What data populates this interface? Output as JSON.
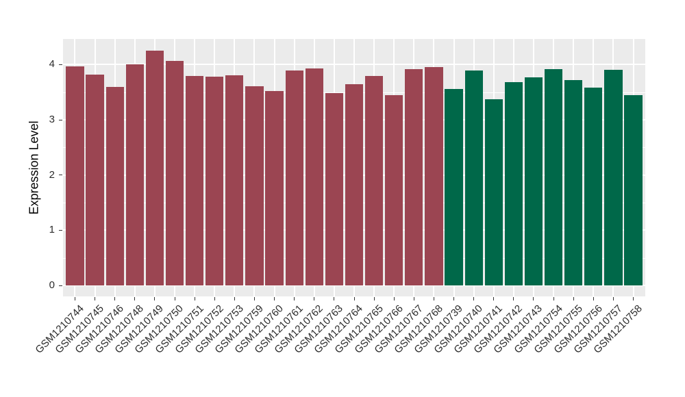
{
  "chart_data": {
    "type": "bar",
    "title": "",
    "xlabel": "",
    "ylabel": "Expression Level",
    "ylim": [
      0,
      4.46
    ],
    "yticks": [
      0,
      1,
      2,
      3,
      4
    ],
    "minor_gridlines": [
      0.5,
      1.5,
      2.5,
      3.5
    ],
    "grid": "on",
    "legend_position": "none",
    "panel_bg": "#EBEBEB",
    "outer_bg": "#FFFFFF",
    "grid_color": "#FFFFFF",
    "tick_color": "#333333",
    "axis_text_color": "#2B2B2B",
    "bar_colors": {
      "group1": "#9B4552",
      "group2": "#006849"
    },
    "bars": [
      {
        "label": "GSM1210744",
        "value": 3.97,
        "group": "group1"
      },
      {
        "label": "GSM1210745",
        "value": 3.82,
        "group": "group1"
      },
      {
        "label": "GSM1210746",
        "value": 3.59,
        "group": "group1"
      },
      {
        "label": "GSM1210748",
        "value": 4.0,
        "group": "group1"
      },
      {
        "label": "GSM1210749",
        "value": 4.25,
        "group": "group1"
      },
      {
        "label": "GSM1210750",
        "value": 4.07,
        "group": "group1"
      },
      {
        "label": "GSM1210751",
        "value": 3.8,
        "group": "group1"
      },
      {
        "label": "GSM1210752",
        "value": 3.78,
        "group": "group1"
      },
      {
        "label": "GSM1210753",
        "value": 3.81,
        "group": "group1"
      },
      {
        "label": "GSM1210759",
        "value": 3.61,
        "group": "group1"
      },
      {
        "label": "GSM1210760",
        "value": 3.52,
        "group": "group1"
      },
      {
        "label": "GSM1210761",
        "value": 3.89,
        "group": "group1"
      },
      {
        "label": "GSM1210762",
        "value": 3.93,
        "group": "group1"
      },
      {
        "label": "GSM1210763",
        "value": 3.49,
        "group": "group1"
      },
      {
        "label": "GSM1210764",
        "value": 3.65,
        "group": "group1"
      },
      {
        "label": "GSM1210765",
        "value": 3.8,
        "group": "group1"
      },
      {
        "label": "GSM1210766",
        "value": 3.45,
        "group": "group1"
      },
      {
        "label": "GSM1210767",
        "value": 3.92,
        "group": "group1"
      },
      {
        "label": "GSM1210768",
        "value": 3.96,
        "group": "group1"
      },
      {
        "label": "GSM1210739",
        "value": 3.56,
        "group": "group2"
      },
      {
        "label": "GSM1210740",
        "value": 3.89,
        "group": "group2"
      },
      {
        "label": "GSM1210741",
        "value": 3.37,
        "group": "group2"
      },
      {
        "label": "GSM1210742",
        "value": 3.68,
        "group": "group2"
      },
      {
        "label": "GSM1210743",
        "value": 3.77,
        "group": "group2"
      },
      {
        "label": "GSM1210754",
        "value": 3.92,
        "group": "group2"
      },
      {
        "label": "GSM1210755",
        "value": 3.72,
        "group": "group2"
      },
      {
        "label": "GSM1210756",
        "value": 3.58,
        "group": "group2"
      },
      {
        "label": "GSM1210757",
        "value": 3.9,
        "group": "group2"
      },
      {
        "label": "GSM1210758",
        "value": 3.45,
        "group": "group2"
      }
    ]
  }
}
